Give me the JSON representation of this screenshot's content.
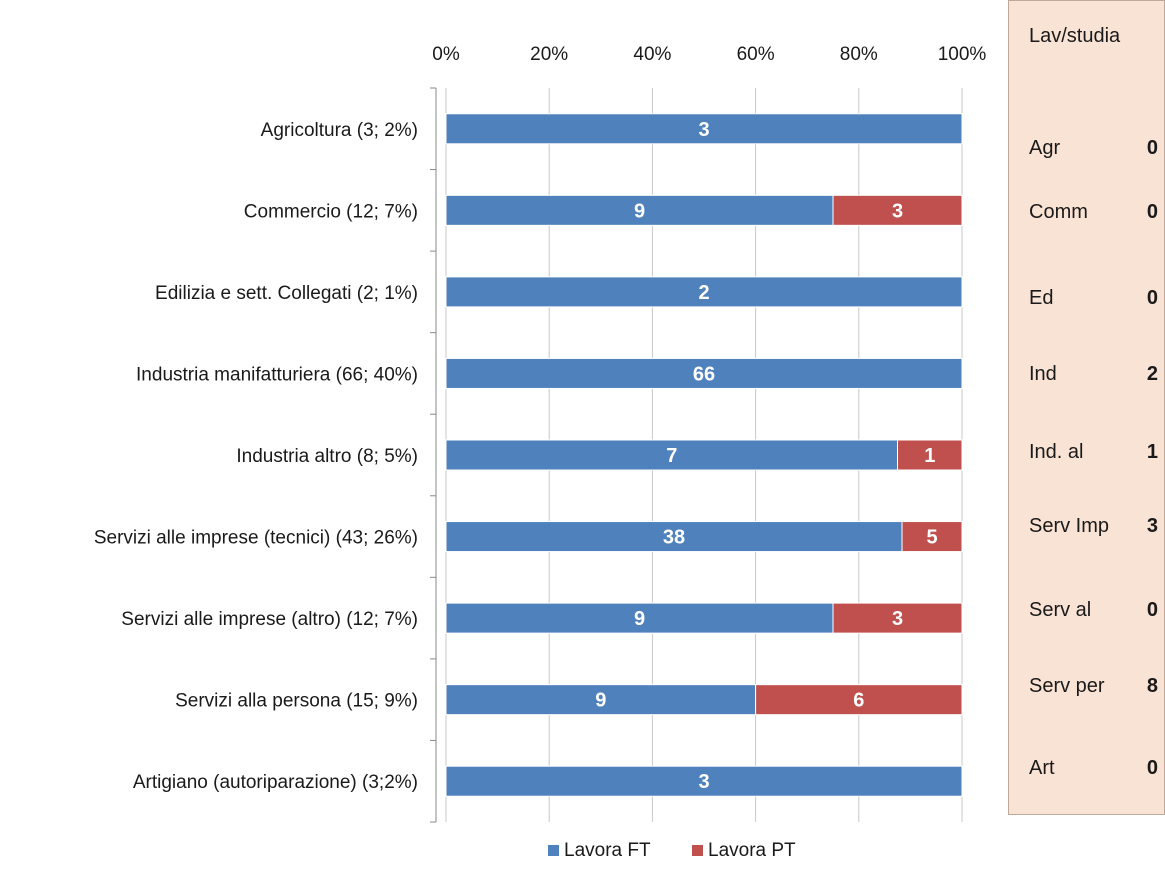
{
  "chart_data": {
    "type": "bar",
    "orientation": "horizontal",
    "stacked": "percent",
    "categories": [
      "Agricoltura (3; 2%)",
      "Commercio (12; 7%)",
      "Edilizia e sett. Collegati (2; 1%)",
      "Industria manifatturiera (66; 40%)",
      "Industria altro (8; 5%)",
      "Servizi alle imprese (tecnici) (43; 26%)",
      "Servizi alle imprese (altro) (12; 7%)",
      "Servizi alla persona (15; 9%)",
      "Artigiano (autoriparazione) (3;2%)"
    ],
    "series": [
      {
        "name": "Lavora FT",
        "color": "#4f81bd",
        "values": [
          3,
          9,
          2,
          66,
          7,
          38,
          9,
          9,
          3
        ]
      },
      {
        "name": "Lavora PT",
        "color": "#c0504d",
        "values": [
          0,
          3,
          0,
          0,
          1,
          5,
          3,
          6,
          0
        ]
      }
    ],
    "x_ticks": [
      "0%",
      "20%",
      "40%",
      "60%",
      "80%",
      "100%"
    ],
    "xlim": [
      0,
      100
    ],
    "x_axis_position": "top",
    "grid": true,
    "legend_position": "bottom"
  },
  "side_panel": {
    "title": "Lav/studia",
    "rows": [
      {
        "label": "Agr",
        "value": "0"
      },
      {
        "label": "Comm",
        "value": "0"
      },
      {
        "label": "Ed",
        "value": "0"
      },
      {
        "label": "Ind",
        "value": "2"
      },
      {
        "label": "Ind. al",
        "value": "1"
      },
      {
        "label": "Serv Imp",
        "value": "3"
      },
      {
        "label": "Serv al",
        "value": "0"
      },
      {
        "label": "Serv per",
        "value": "8"
      },
      {
        "label": "Art",
        "value": "0"
      }
    ]
  }
}
